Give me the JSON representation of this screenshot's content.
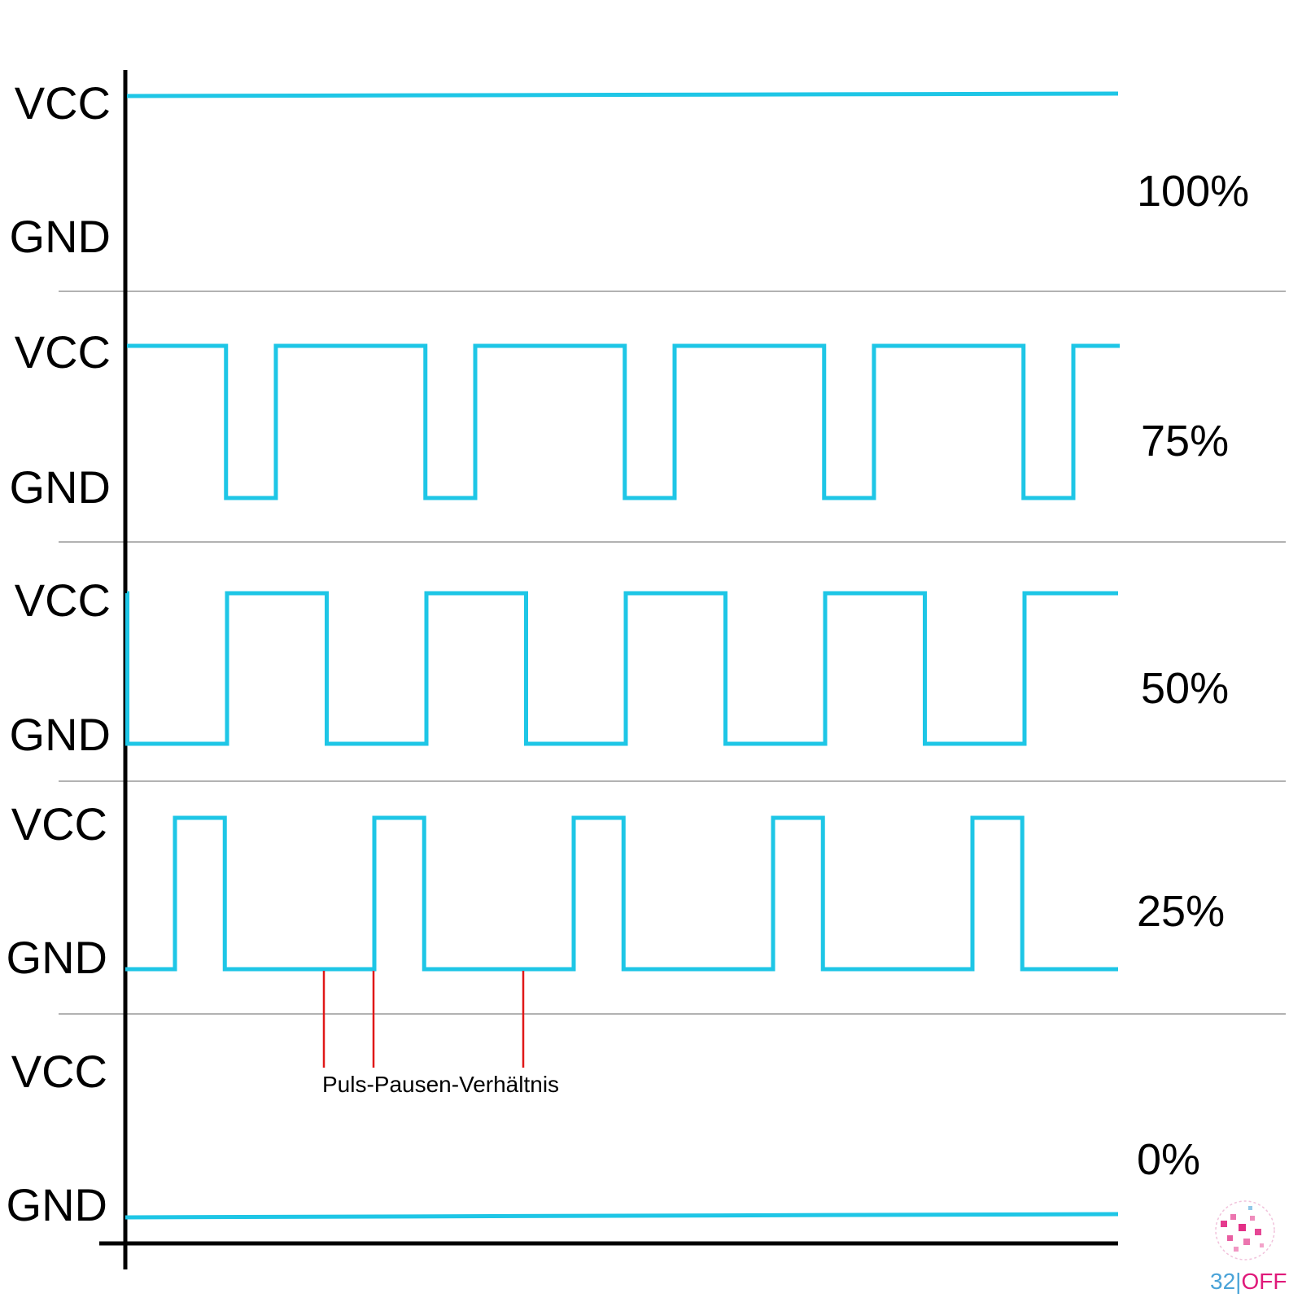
{
  "diagram": {
    "colors": {
      "signal": "#1ec6e6",
      "axis": "#000000",
      "separator": "#999999",
      "marker": "#e01818",
      "logo_blue": "#4aa3d8",
      "logo_pink": "#e0197a"
    },
    "panels": [
      {
        "high_label": "VCC",
        "low_label": "GND",
        "duty_label": "100%",
        "duty": 1.0
      },
      {
        "high_label": "VCC",
        "low_label": "GND",
        "duty_label": "75%",
        "duty": 0.75
      },
      {
        "high_label": "VCC",
        "low_label": "GND",
        "duty_label": "50%",
        "duty": 0.5
      },
      {
        "high_label": "VCC",
        "low_label": "GND",
        "duty_label": "25%",
        "duty": 0.25
      },
      {
        "high_label": "VCC",
        "low_label": "GND",
        "duty_label": "0%",
        "duty": 0.0
      }
    ],
    "pulses": 5,
    "annotation": {
      "text": "Puls-Pausen-Verhältnis"
    },
    "logo": {
      "part1": "32",
      "separator": "|",
      "part2": "OFF"
    }
  }
}
